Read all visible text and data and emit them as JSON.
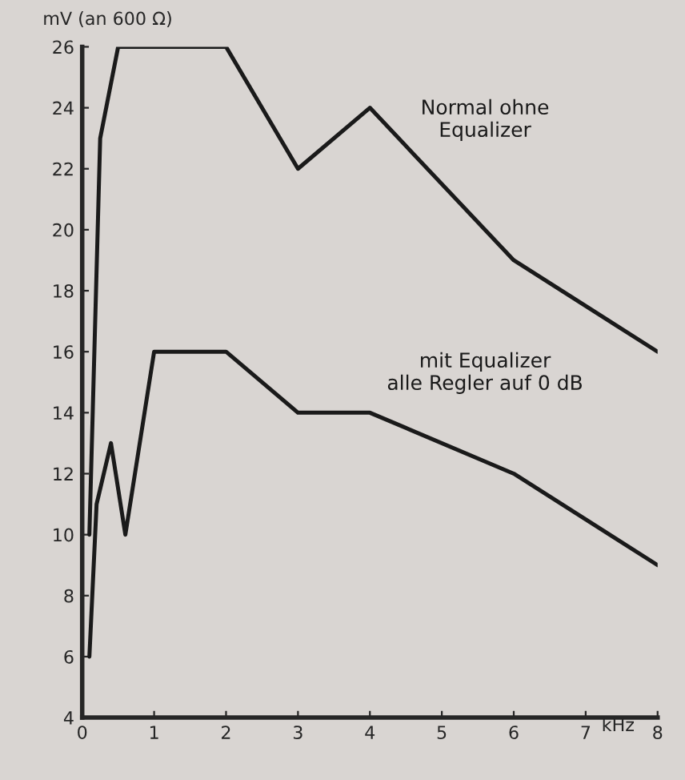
{
  "chart_data": {
    "type": "line",
    "xlabel": "kHz",
    "ylabel": "mV (an 600 Ω)",
    "xlim": [
      0,
      8
    ],
    "ylim": [
      4,
      26
    ],
    "xticks": [
      0,
      1,
      2,
      3,
      4,
      5,
      6,
      7,
      8
    ],
    "yticks": [
      4,
      6,
      8,
      10,
      12,
      14,
      16,
      18,
      20,
      22,
      24,
      26
    ],
    "grid": false,
    "legend": false,
    "marker": "none",
    "line_style": "solid",
    "series": [
      {
        "name": "Normal ohne\nEqualizer",
        "color": "#1a1a1a",
        "x": [
          0.1,
          0.25,
          0.5,
          2,
          3,
          4,
          6,
          8
        ],
        "values": [
          10,
          23,
          26,
          26,
          22,
          24,
          19,
          16
        ]
      },
      {
        "name": "mit Equalizer\nalle Regler auf 0 dB",
        "color": "#1a1a1a",
        "x": [
          0.1,
          0.2,
          0.4,
          0.6,
          1,
          2,
          3,
          4,
          6,
          8
        ],
        "values": [
          6,
          11,
          13,
          10,
          16,
          16,
          14,
          14,
          12,
          9
        ]
      }
    ]
  }
}
